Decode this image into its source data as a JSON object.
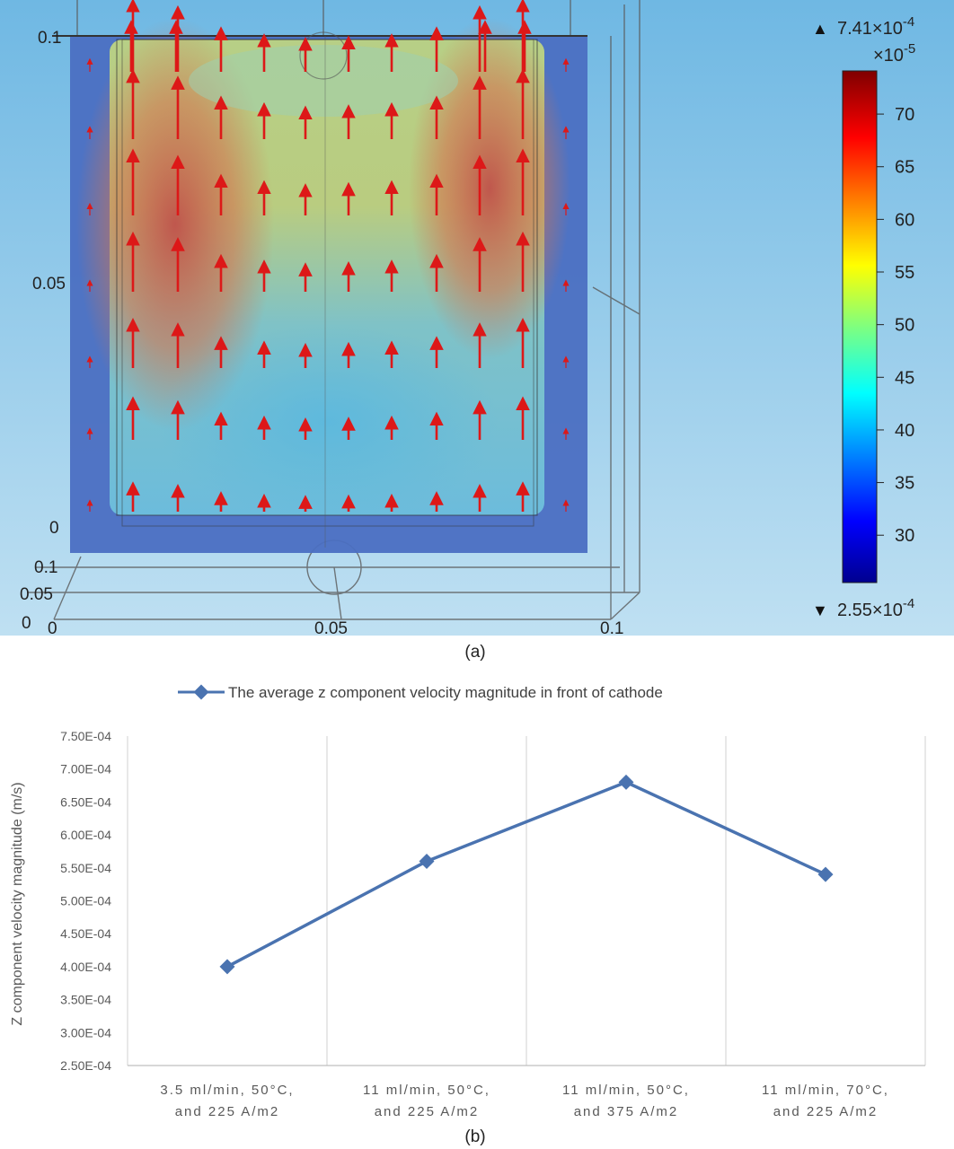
{
  "panel_a": {
    "caption": "(a)",
    "axis_ticks": {
      "v_top": "0.1",
      "v_mid": "0.05",
      "v_bottom": "0",
      "depth_a": "0.1",
      "depth_b": "0.05",
      "depth_c": "0",
      "x_left": "0",
      "x_mid": "0.05",
      "x_right": "0.1"
    },
    "colorbar": {
      "max_label": "7.41×10",
      "max_exp": "-4",
      "scale_label": "×10",
      "scale_exp": "-5",
      "min_label": "2.55×10",
      "min_exp": "-4",
      "ticks": [
        "70",
        "65",
        "60",
        "55",
        "50",
        "45",
        "40",
        "35",
        "30"
      ],
      "tick_values": [
        70,
        65,
        60,
        55,
        50,
        45,
        40,
        35,
        30
      ],
      "range": [
        25.5,
        74.1
      ]
    },
    "colors": {
      "background": "#7cc0e6",
      "arrow": "#dd1818",
      "box_edge": "#4a4a4a"
    }
  },
  "panel_b": {
    "caption": "(b)"
  },
  "chart_data": {
    "type": "line",
    "title": "",
    "legend": "The average z component velocity magnitude in front of cathode",
    "legend_position": "top",
    "xlabel": "",
    "ylabel": "Z component velocity magnitude (m/s)",
    "categories": [
      [
        "3.5 ml/min, 50°C,",
        "and 225 A/m2"
      ],
      [
        "11 ml/min, 50°C,",
        "and 225 A/m2"
      ],
      [
        "11 ml/min, 50°C,",
        "and 375 A/m2"
      ],
      [
        "11 ml/min, 70°C,",
        "and 225 A/m2"
      ]
    ],
    "series": [
      {
        "name": "The average z component velocity magnitude in front of cathode",
        "values": [
          0.0004,
          0.00056,
          0.00068,
          0.00054
        ]
      }
    ],
    "yticks": [
      "2.50E-04",
      "3.00E-04",
      "3.50E-04",
      "4.00E-04",
      "4.50E-04",
      "5.00E-04",
      "5.50E-04",
      "6.00E-04",
      "6.50E-04",
      "7.00E-04",
      "7.50E-04"
    ],
    "ylim": [
      0.00025,
      0.00075
    ],
    "grid": "vertical",
    "colors": {
      "line": "#4a73b0",
      "grid": "#d9d9d9"
    }
  }
}
